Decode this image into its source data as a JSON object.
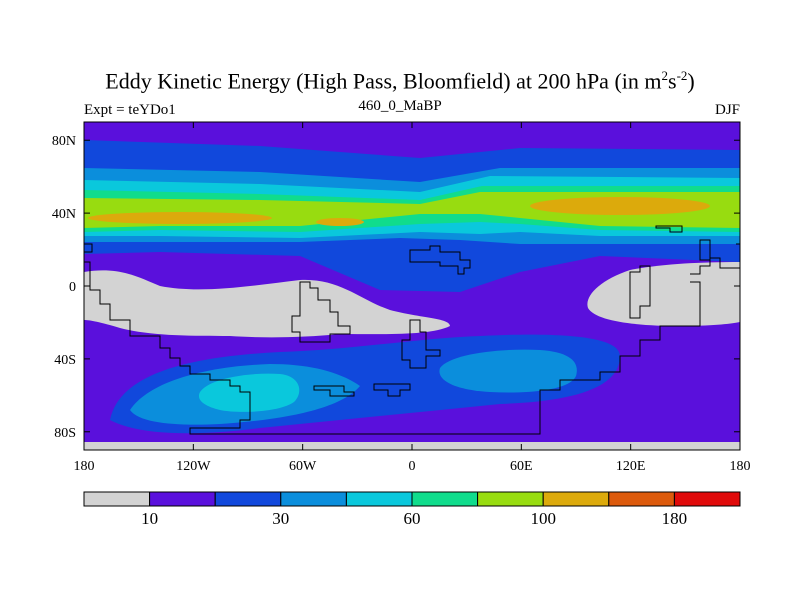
{
  "chart_data": {
    "type": "heatmap",
    "title": {
      "main": "Eddy Kinetic Energy (High Pass, Bloomfield) at 200 hPa (in m",
      "sup1": "2",
      "mid": "s",
      "sup2": "-2",
      "end": ")"
    },
    "subtitle": "460_0_MaBP",
    "left_label": "Expt = teYDo1",
    "right_label": "DJF",
    "x_range": [
      -180,
      180
    ],
    "y_range": [
      -90,
      90
    ],
    "x_ticks": [
      {
        "value": -180,
        "label": "180"
      },
      {
        "value": -120,
        "label": "120W"
      },
      {
        "value": -60,
        "label": "60W"
      },
      {
        "value": 0,
        "label": "0"
      },
      {
        "value": 60,
        "label": "60E"
      },
      {
        "value": 120,
        "label": "120E"
      },
      {
        "value": 180,
        "label": "180"
      }
    ],
    "y_ticks": [
      {
        "value": 80,
        "label": "80N"
      },
      {
        "value": 40,
        "label": "40N"
      },
      {
        "value": 0,
        "label": "0"
      },
      {
        "value": -40,
        "label": "40S"
      },
      {
        "value": -80,
        "label": "80S"
      }
    ],
    "colorbar": {
      "colors": [
        "#d3d3d3",
        "#5a10dc",
        "#1148dc",
        "#0b8edc",
        "#0ac8dc",
        "#10dc8c",
        "#98dc10",
        "#dcaa0c",
        "#dc5a0c",
        "#e00a0a"
      ],
      "labels": [
        {
          "after_box": 1,
          "label": "10"
        },
        {
          "after_box": 3,
          "label": "30"
        },
        {
          "after_box": 5,
          "label": "60"
        },
        {
          "after_box": 7,
          "label": "100"
        },
        {
          "after_box": 9,
          "label": "180"
        }
      ]
    },
    "bands": [
      {
        "lat_range": [
          84,
          90
        ],
        "value_level": 1,
        "description": "polar violet"
      },
      {
        "lat_range": [
          68,
          84
        ],
        "value_level": 2
      },
      {
        "lat_range": [
          60,
          68
        ],
        "value_level": 3
      },
      {
        "lat_range": [
          52,
          60
        ],
        "value_level": 4
      },
      {
        "lat_range": [
          46,
          52
        ],
        "value_level": 5
      },
      {
        "lat_range": [
          30,
          46
        ],
        "value_level": 6,
        "max_level": 7,
        "max_lon": [
          -170,
          -120,
          100,
          175
        ]
      },
      {
        "lat_range": [
          20,
          30
        ],
        "value_level": 4
      },
      {
        "lat_range": [
          5,
          20
        ],
        "value_level": 2
      },
      {
        "lat_range": [
          -25,
          5
        ],
        "value_level": 0,
        "description": "tropical gray minimum"
      },
      {
        "lat_range": [
          -85,
          -35
        ],
        "value_level": 3,
        "max_level": 4,
        "max_lon": [
          -110,
          -50
        ]
      }
    ]
  }
}
